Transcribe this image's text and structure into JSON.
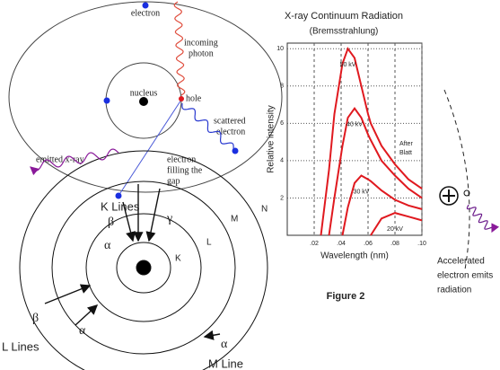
{
  "atom": {
    "electron": "electron",
    "incoming_photon": [
      "incoming",
      "photon"
    ],
    "nucleus": "nucleus",
    "hole": "hole",
    "scattered_electron": [
      "scattered",
      "electron"
    ],
    "emitted_xray": "emitted x-ray",
    "electron_filling": [
      "electron",
      "filling the",
      "gap"
    ],
    "caption": "K Lines"
  },
  "shells": {
    "labels": [
      "K",
      "L",
      "M",
      "N"
    ],
    "k_beta": "β",
    "k_gamma": "γ",
    "k_alpha": "α",
    "l_beta": "β",
    "l_alpha": "α",
    "m_alpha": "α",
    "l_caption": "L Lines",
    "m_caption": "M Line"
  },
  "radiation": {
    "caption": [
      "Accelerated",
      "electron emits",
      "radiation"
    ]
  },
  "chart_data": {
    "type": "line",
    "title": "X-ray Continuum Radiation",
    "subtitle": "(Bremsstrahlung)",
    "x_label": "Wavelength (nm)",
    "y_label": "Relative intensity",
    "figure_label": "Figure 2",
    "annotation": [
      "After",
      "Blatt"
    ],
    "x": [
      0.025,
      0.031,
      0.035,
      0.041,
      0.045,
      0.05,
      0.055,
      0.06,
      0.062,
      0.07,
      0.08,
      0.09,
      0.1
    ],
    "series": [
      {
        "name": "50 kV",
        "color": "#e0191f",
        "values": [
          0,
          3.5,
          6.5,
          9.2,
          10,
          9.5,
          8,
          6.5,
          6,
          4.8,
          3.8,
          3,
          2.5
        ]
      },
      {
        "name": "40 kV",
        "color": "#e0191f",
        "values": [
          null,
          0,
          2,
          4.8,
          6.3,
          6.8,
          6.3,
          5.4,
          5.1,
          4,
          3.2,
          2.5,
          2
        ]
      },
      {
        "name": "30 kV",
        "color": "#e0191f",
        "values": [
          null,
          null,
          null,
          0,
          1.5,
          2.8,
          3.2,
          3,
          2.9,
          2.4,
          1.9,
          1.6,
          1.4
        ]
      },
      {
        "name": "20 kV",
        "color": "#e0191f",
        "values": [
          null,
          null,
          null,
          null,
          null,
          null,
          null,
          null,
          0,
          0.9,
          1.2,
          1,
          0.8
        ]
      }
    ],
    "xlim": [
      0,
      0.1
    ],
    "ylim": [
      0,
      10.3
    ],
    "xticks": [
      {
        "value": 0.02,
        "label": ".02"
      },
      {
        "value": 0.04,
        "label": ".04"
      },
      {
        "value": 0.06,
        "label": ".06"
      },
      {
        "value": 0.08,
        "label": ".08"
      },
      {
        "value": 0.1,
        "label": ".10"
      }
    ],
    "yticks": [
      2,
      4,
      6,
      8,
      10
    ],
    "grid": true
  }
}
